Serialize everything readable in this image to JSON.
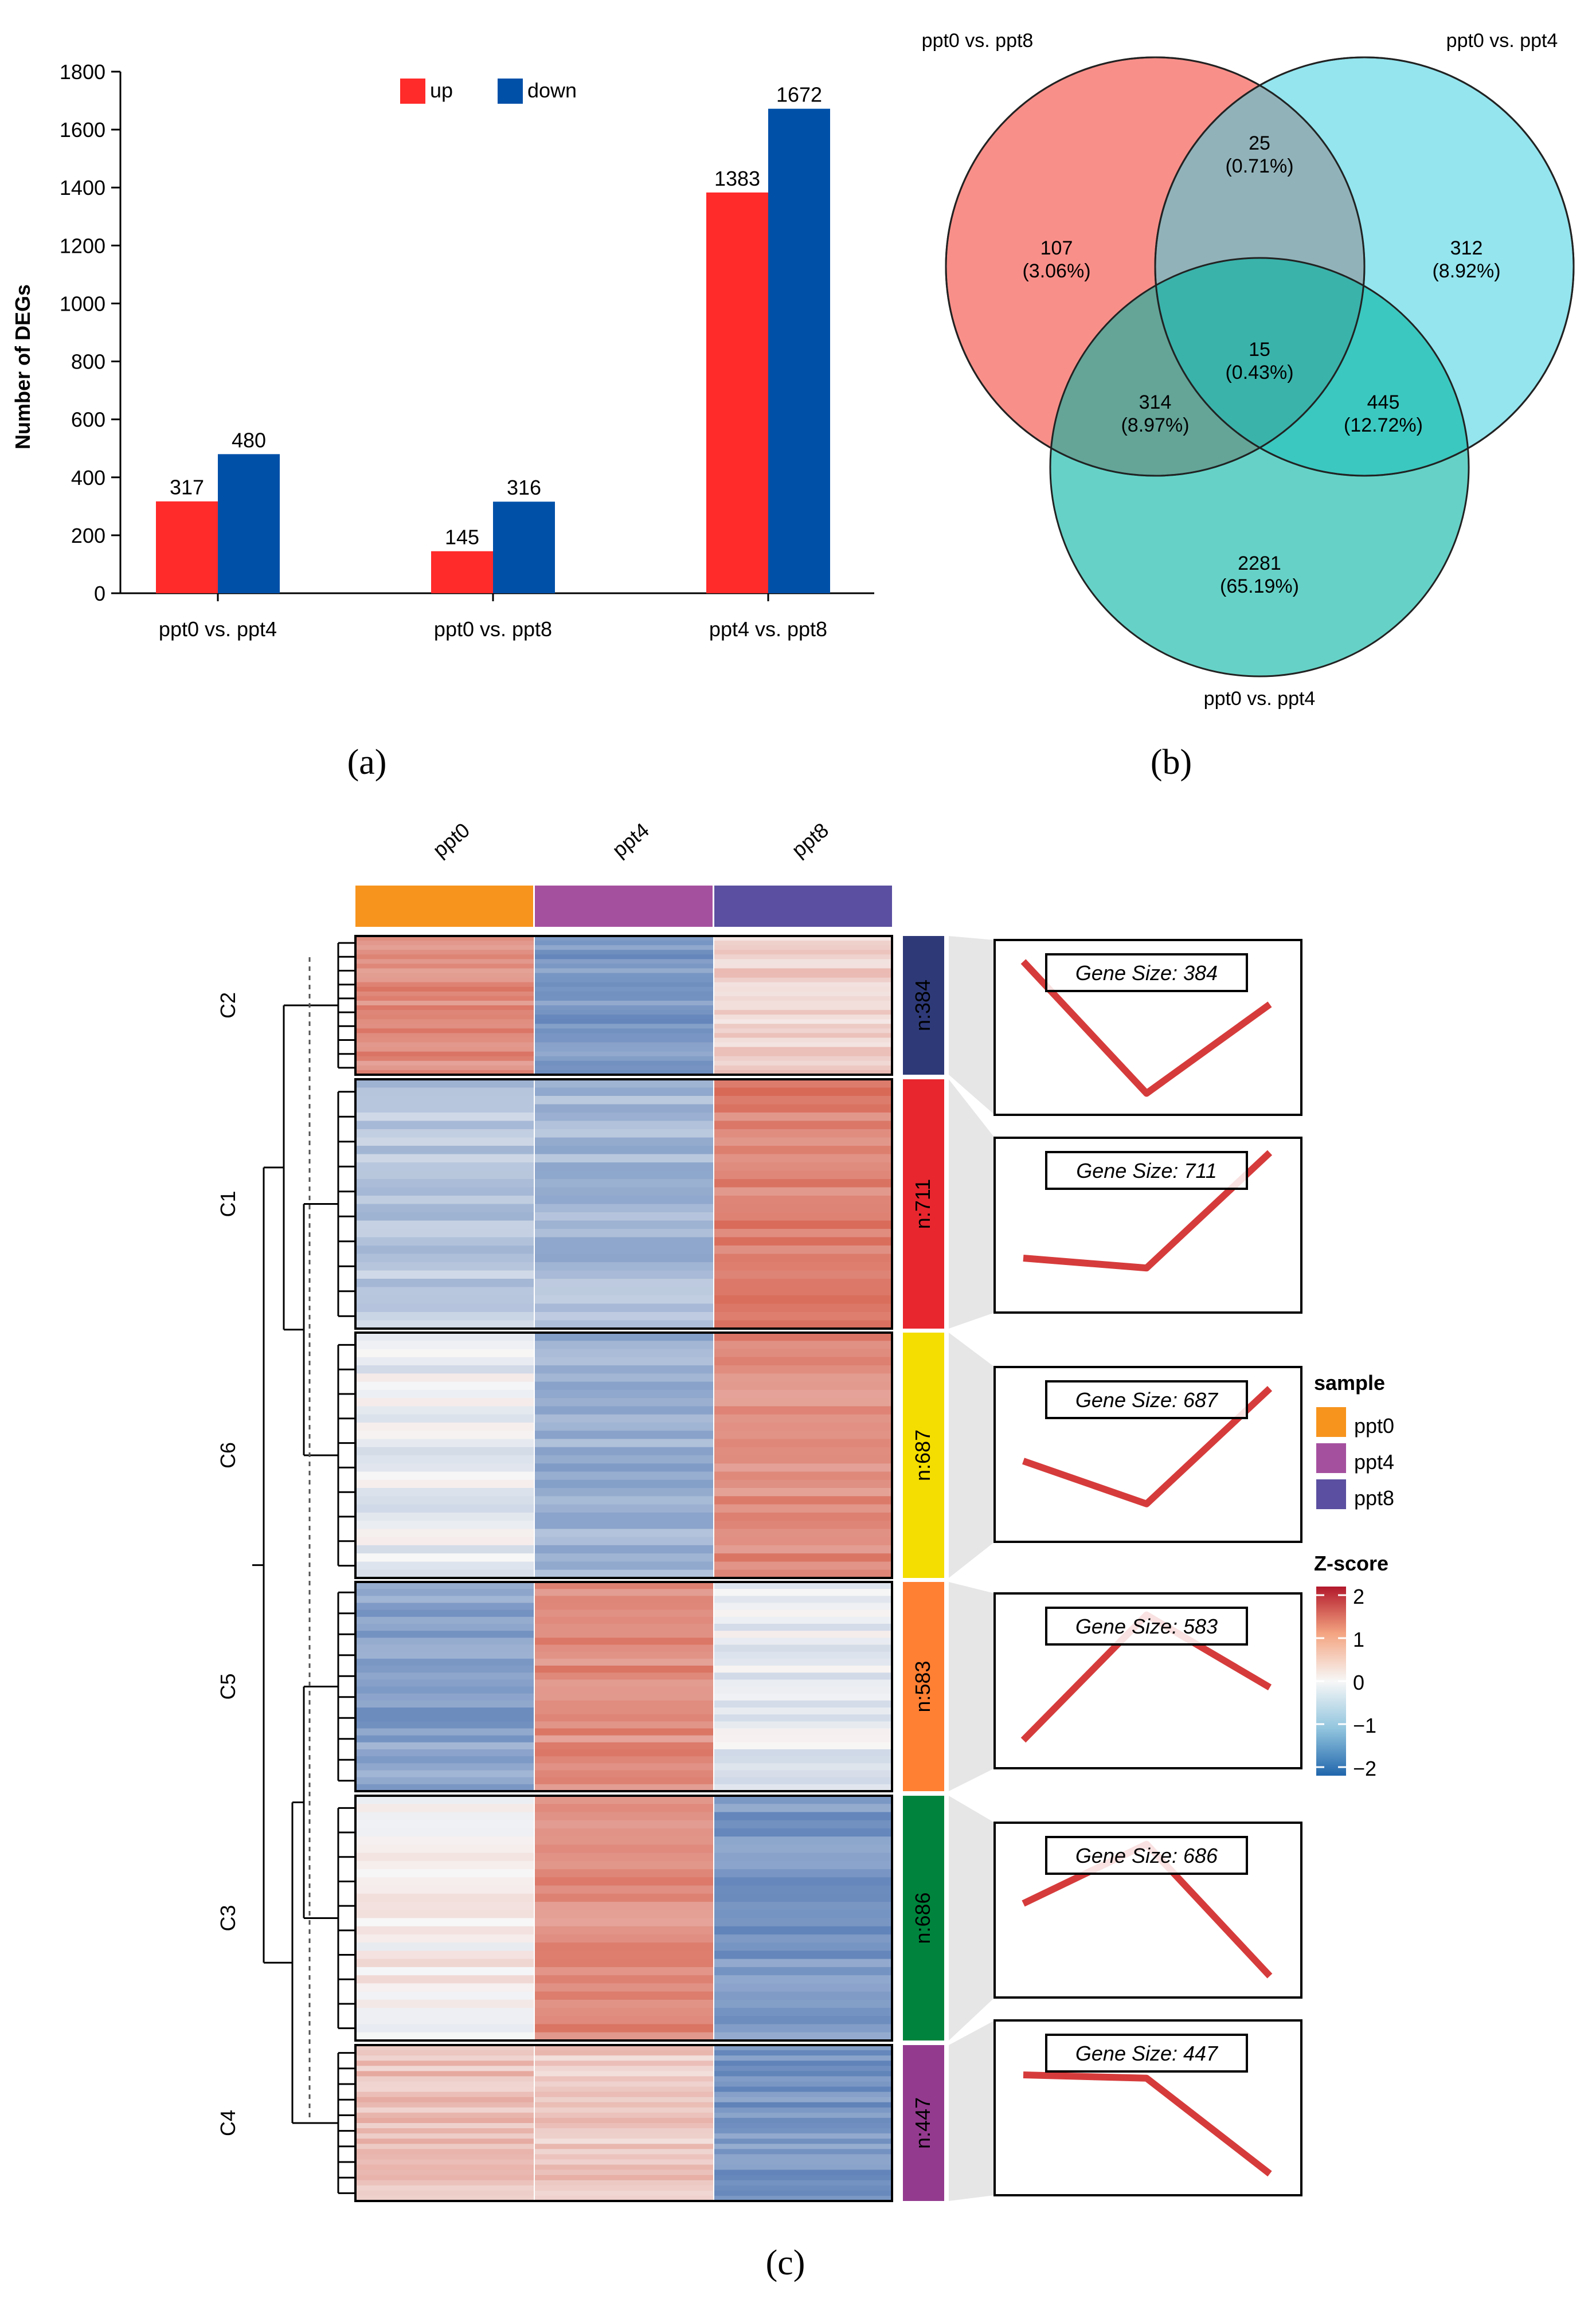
{
  "colors": {
    "up": "#FF2A2A",
    "down": "#0050A8",
    "venn_a": "#F8736B",
    "venn_b": "#3DCFE0",
    "venn_c": "#00B4A2",
    "ppt0": "#F7941D",
    "ppt4": "#A5509F",
    "ppt8": "#5A4FA0",
    "line": "#D63B3B",
    "C2": "#2E3A78",
    "C1": "#E8262E",
    "C6": "#F4DD00",
    "C5": "#FF7F33",
    "C3": "#00843D",
    "C4": "#933A8E",
    "z_hi": "#B2182B",
    "z_mid": "#F7F7F7",
    "z_lo": "#2166AC"
  },
  "captions": {
    "a": "(a)",
    "b": "(b)",
    "c": "(c)"
  },
  "chart_data": [
    {
      "type": "bar",
      "panel": "a",
      "ylabel": "Number of DEGs",
      "ylim": [
        0,
        1800
      ],
      "yticks": [
        0,
        200,
        400,
        600,
        800,
        1000,
        1200,
        1400,
        1600,
        1800
      ],
      "categories": [
        "ppt0 vs. ppt4",
        "ppt0 vs. ppt8",
        "ppt4 vs. ppt8"
      ],
      "series": [
        {
          "name": "up",
          "values": [
            317,
            145,
            1383
          ]
        },
        {
          "name": "down",
          "values": [
            480,
            316,
            1672
          ]
        }
      ],
      "legend_position": "top-center",
      "grid": false
    },
    {
      "type": "venn",
      "panel": "b",
      "sets": [
        "ppt0 vs. ppt8",
        "ppt0 vs. ppt4",
        "ppt0 vs. ppt4"
      ],
      "regions": [
        {
          "sets": [
            "A"
          ],
          "count": "107",
          "pct": "(3.06%)"
        },
        {
          "sets": [
            "B"
          ],
          "count": "312",
          "pct": "(8.92%)"
        },
        {
          "sets": [
            "C"
          ],
          "count": "2281",
          "pct": "(65.19%)"
        },
        {
          "sets": [
            "A",
            "B"
          ],
          "count": "25",
          "pct": "(0.71%)"
        },
        {
          "sets": [
            "A",
            "C"
          ],
          "count": "314",
          "pct": "(8.97%)"
        },
        {
          "sets": [
            "B",
            "C"
          ],
          "count": "445",
          "pct": "(12.72%)"
        },
        {
          "sets": [
            "A",
            "B",
            "C"
          ],
          "count": "15",
          "pct": "(0.43%)"
        }
      ]
    },
    {
      "type": "heatmap",
      "panel": "c",
      "samples": [
        "ppt0",
        "ppt4",
        "ppt8"
      ],
      "clusters": [
        {
          "name": "C2",
          "n_label": "n:384",
          "gene_size": "Gene Size: 384",
          "profile": [
            1.0,
            -1.0,
            0.35
          ]
        },
        {
          "name": "C1",
          "n_label": "n:711",
          "gene_size": "Gene Size: 711",
          "profile": [
            -0.5,
            -0.65,
            1.1
          ]
        },
        {
          "name": "C6",
          "n_label": "n:687",
          "gene_size": "Gene Size: 687",
          "profile": [
            -0.1,
            -0.75,
            1.0
          ]
        },
        {
          "name": "C5",
          "n_label": "n:583",
          "gene_size": "Gene Size: 583",
          "profile": [
            -0.9,
            1.0,
            -0.1
          ]
        },
        {
          "name": "C3",
          "n_label": "n:686",
          "gene_size": "Gene Size: 686",
          "profile": [
            0.1,
            1.0,
            -1.0
          ]
        },
        {
          "name": "C4",
          "n_label": "n:447",
          "gene_size": "Gene Size: 447",
          "profile": [
            0.5,
            0.45,
            -1.0
          ]
        }
      ],
      "legend_sample_title": "sample",
      "legend_z_title": "Z-score",
      "z_ticks": [
        "2",
        "1",
        "0",
        "−1",
        "−2"
      ],
      "zlim": [
        -2,
        2
      ]
    }
  ]
}
